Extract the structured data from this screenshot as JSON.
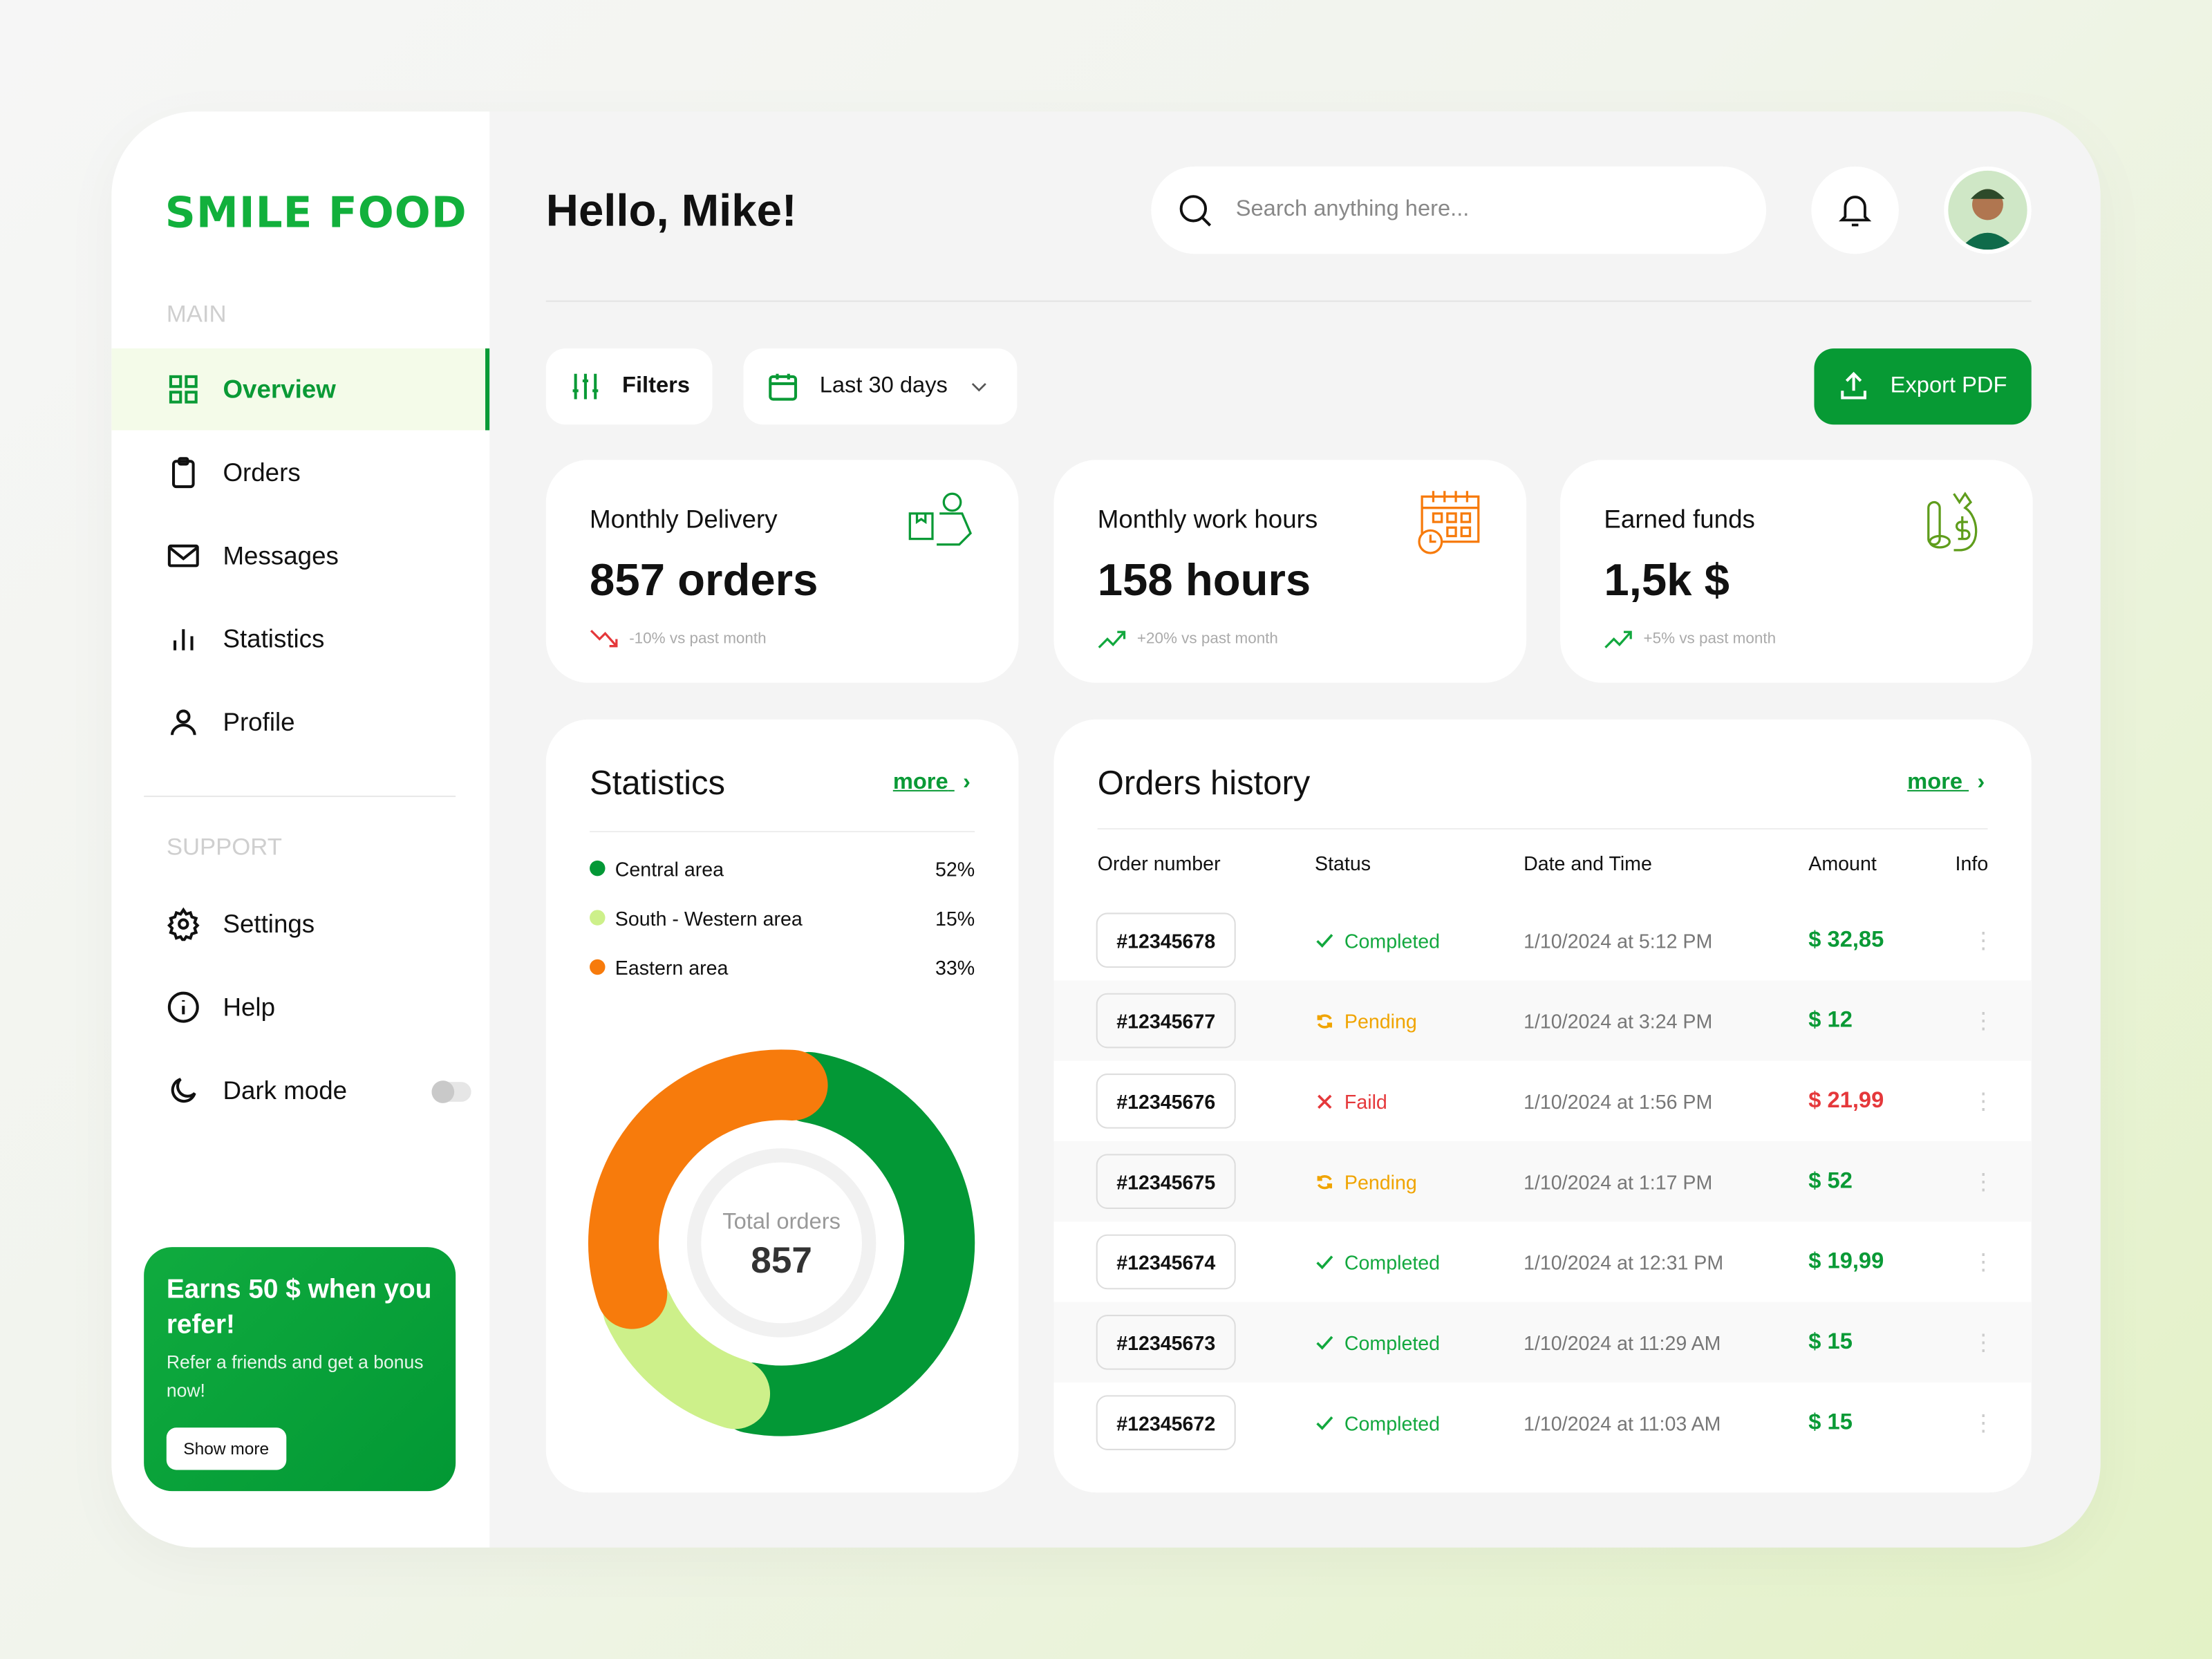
{
  "brand": {
    "logo": "SMILE FOOD",
    "accent": "#0a9a36"
  },
  "sidebar": {
    "main_label": "MAIN",
    "items": [
      {
        "label": "Overview",
        "icon": "grid-icon",
        "active": true
      },
      {
        "label": "Orders",
        "icon": "clipboard-icon"
      },
      {
        "label": "Messages",
        "icon": "mail-icon"
      },
      {
        "label": "Statistics",
        "icon": "bar-chart-icon"
      },
      {
        "label": "Profile",
        "icon": "user-icon"
      }
    ],
    "support_label": "SUPPORT",
    "support_items": [
      {
        "label": "Settings",
        "icon": "gear-icon"
      },
      {
        "label": "Help",
        "icon": "info-icon"
      },
      {
        "label": "Dark mode",
        "icon": "moon-icon",
        "toggle": false
      }
    ],
    "promo": {
      "title": "Earns 50 $ when you refer!",
      "text": "Refer a friends and get a bonus now!",
      "button": "Show more"
    }
  },
  "header": {
    "greeting": "Hello, Mike!",
    "search_placeholder": "Search anything here..."
  },
  "toolbar": {
    "filters": "Filters",
    "range": "Last 30 days",
    "export": "Export PDF"
  },
  "stats": [
    {
      "title": "Monthly Delivery",
      "value": "857 orders",
      "delta": "-10% vs past month",
      "trend": "down",
      "icon": "delivery-man-icon"
    },
    {
      "title": "Monthly work hours",
      "value": "158 hours",
      "delta": "+20% vs past month",
      "trend": "up",
      "icon": "calendar-clock-icon"
    },
    {
      "title": "Earned funds",
      "value": "1,5k $",
      "delta": "+5% vs past month",
      "trend": "up",
      "icon": "money-bag-icon"
    }
  ],
  "statistics": {
    "title": "Statistics",
    "more": "more",
    "center_label": "Total orders",
    "center_value": "857"
  },
  "chart_data": {
    "type": "pie",
    "categories": [
      "Central area",
      "South - Western area",
      "Eastern area"
    ],
    "values": [
      52,
      15,
      33
    ],
    "labels": [
      "52%",
      "15%",
      "33%"
    ],
    "colors": [
      "#039836",
      "#cdf08a",
      "#f77b0c"
    ]
  },
  "orders": {
    "title": "Orders history",
    "more": "more",
    "columns": [
      "Order number",
      "Status",
      "Date and Time",
      "Amount",
      "Info"
    ],
    "rows": [
      {
        "id": "#12345678",
        "status": "Completed",
        "date": "1/10/2024 at 5:12 PM",
        "amount": "$ 32,85"
      },
      {
        "id": "#12345677",
        "status": "Pending",
        "date": "1/10/2024 at 3:24 PM",
        "amount": "$ 12"
      },
      {
        "id": "#12345676",
        "status": "Faild",
        "date": "1/10/2024 at 1:56 PM",
        "amount": "$ 21,99"
      },
      {
        "id": "#12345675",
        "status": "Pending",
        "date": "1/10/2024 at 1:17 PM",
        "amount": "$ 52"
      },
      {
        "id": "#12345674",
        "status": "Completed",
        "date": "1/10/2024 at 12:31 PM",
        "amount": "$ 19,99"
      },
      {
        "id": "#12345673",
        "status": "Completed",
        "date": "1/10/2024 at 11:29 AM",
        "amount": "$ 15"
      },
      {
        "id": "#12345672",
        "status": "Completed",
        "date": "1/10/2024 at 11:03 AM",
        "amount": "$ 15"
      }
    ],
    "status_colors": {
      "Completed": "#12a83e",
      "Pending": "#f0a400",
      "Faild": "#e5383b"
    }
  }
}
